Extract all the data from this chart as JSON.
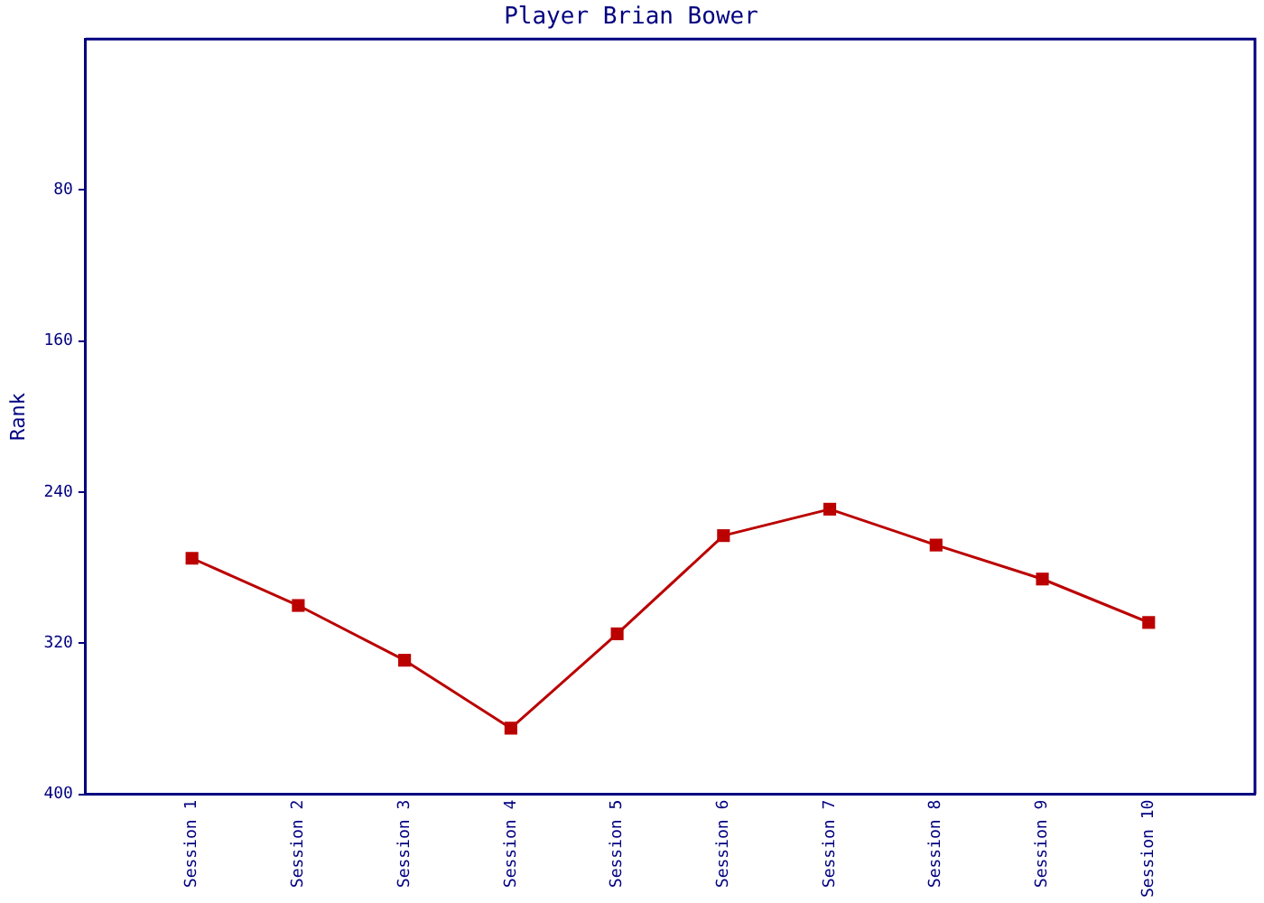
{
  "chart_data": {
    "type": "line",
    "title": "Player Brian Bower",
    "ylabel": "Rank",
    "categories": [
      "Session 1",
      "Session 2",
      "Session 3",
      "Session 4",
      "Session 5",
      "Session 6",
      "Session 7",
      "Session 8",
      "Session 9",
      "Session 10"
    ],
    "series": [
      {
        "color": "#bb0000",
        "values": [
          275,
          300,
          329,
          365,
          315,
          263,
          249,
          268,
          286,
          309
        ]
      }
    ],
    "ylim": [
      400,
      0
    ],
    "yticks": [
      80,
      160,
      240,
      320,
      400
    ],
    "grid": false,
    "legend": false,
    "marker": "square",
    "line_style": "solid"
  }
}
